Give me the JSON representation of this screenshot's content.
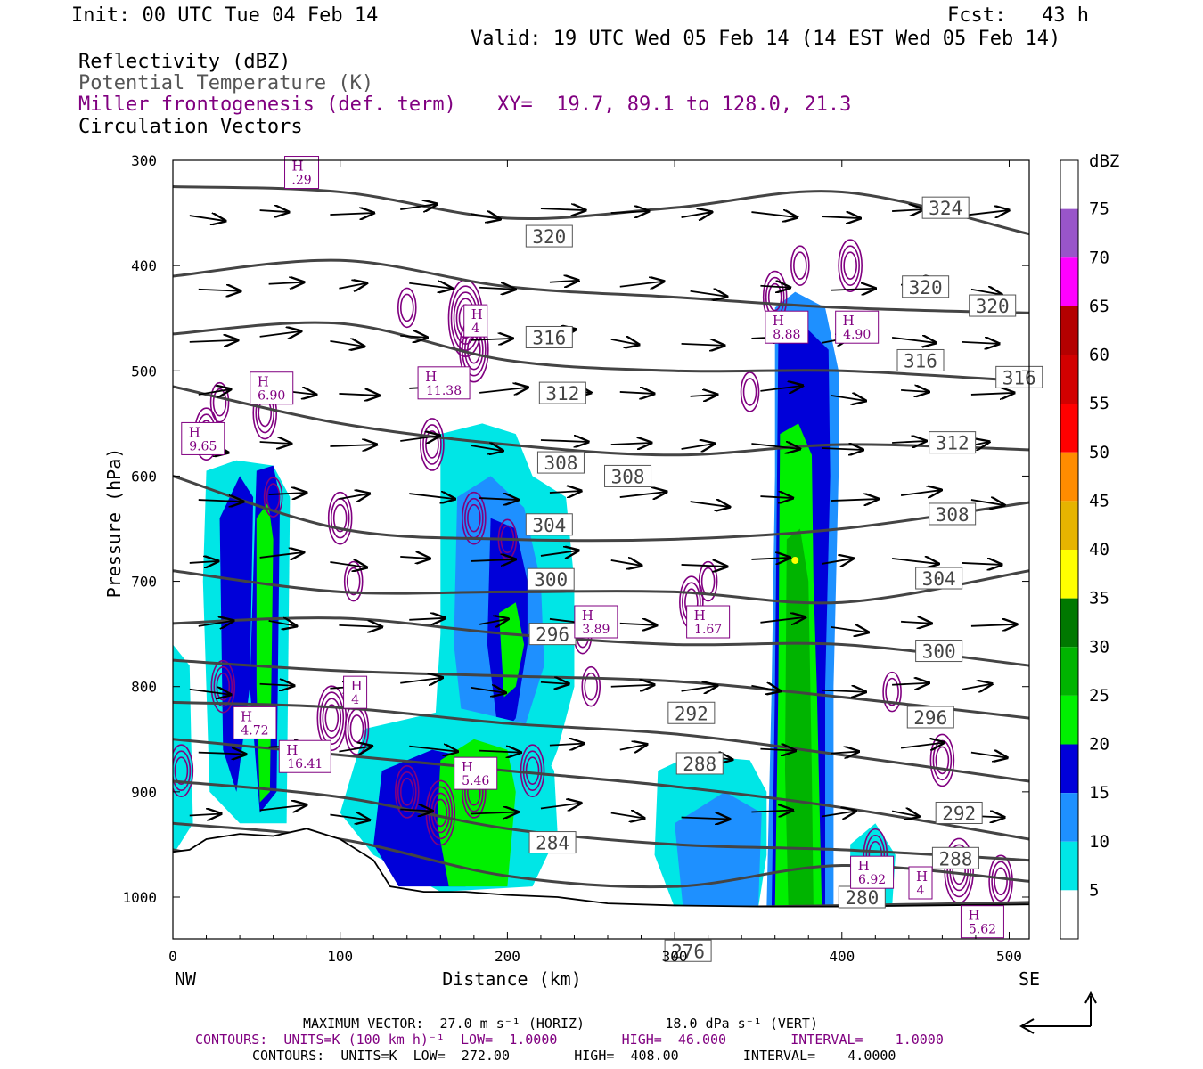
{
  "header": {
    "init": "Init: 00 UTC Tue 04 Feb 14",
    "fcst": "Fcst:   43 h",
    "valid": "Valid: 19 UTC Wed 05 Feb 14 (14 EST Wed 05 Feb 14)",
    "field1": "Reflectivity (dBZ)",
    "field2": "Potential Temperature (K)",
    "field3": "Miller frontogenesis (def. term)",
    "xy": "XY=  19.7, 89.1 to 128.0, 21.3",
    "field4": "Circulation Vectors"
  },
  "footer": {
    "max_vector": "MAXIMUM VECTOR:  27.0 m s⁻¹ (HORIZ)          18.0 dPa s⁻¹ (VERT)",
    "contours_fronto": "CONTOURS:  UNITS=K (100 km h)⁻¹  LOW=  1.0000        HIGH=  46.000        INTERVAL=    1.0000",
    "contours_theta": "CONTOURS:  UNITS=K  LOW=  272.00        HIGH=  408.00        INTERVAL=    4.0000"
  },
  "colors": {
    "theta": "#444444",
    "fronto": "#800080",
    "vectors": "#000000"
  },
  "chart_data": {
    "type": "cross-section",
    "xlabel": "Distance (km)",
    "ylabel": "Pressure (hPa)",
    "xlim": [
      0,
      512
    ],
    "ylim": [
      1040,
      300
    ],
    "x_ticks": [
      0,
      100,
      200,
      300,
      400,
      500
    ],
    "y_ticks": [
      300,
      400,
      500,
      600,
      700,
      800,
      900,
      1000
    ],
    "x_end_labels": [
      "NW",
      "SE"
    ],
    "colorbar": {
      "title": "dBZ",
      "levels": [
        5,
        10,
        15,
        20,
        25,
        30,
        35,
        40,
        45,
        50,
        55,
        60,
        65,
        70,
        75
      ],
      "colors": [
        "#ffffff",
        "#00e6e6",
        "#1e90ff",
        "#0000d9",
        "#00f000",
        "#00b400",
        "#007800",
        "#ffff00",
        "#e6b400",
        "#ff8c00",
        "#ff0000",
        "#d20000",
        "#b40000",
        "#ff00ff",
        "#9955c9",
        "#ffffff"
      ]
    },
    "theta_contours": [
      {
        "label": "276",
        "points": [
          [
            0,
            955
          ],
          [
            100,
            985
          ],
          [
            200,
            1008
          ],
          [
            300,
            1010
          ],
          [
            400,
            1008
          ],
          [
            512,
            1005
          ]
        ]
      },
      {
        "label": "280",
        "points": [
          [
            0,
            930
          ],
          [
            100,
            945
          ],
          [
            200,
            980
          ],
          [
            300,
            990
          ],
          [
            400,
            970
          ],
          [
            512,
            985
          ]
        ]
      },
      {
        "label": "284",
        "points": [
          [
            0,
            890
          ],
          [
            100,
            905
          ],
          [
            200,
            935
          ],
          [
            300,
            950
          ],
          [
            400,
            955
          ],
          [
            512,
            965
          ]
        ]
      },
      {
        "label": "288",
        "points": [
          [
            0,
            850
          ],
          [
            100,
            865
          ],
          [
            200,
            880
          ],
          [
            300,
            895
          ],
          [
            400,
            915
          ],
          [
            512,
            945
          ]
        ]
      },
      {
        "label": "292",
        "points": [
          [
            0,
            815
          ],
          [
            100,
            820
          ],
          [
            200,
            835
          ],
          [
            300,
            845
          ],
          [
            400,
            865
          ],
          [
            512,
            890
          ]
        ]
      },
      {
        "label": "296",
        "points": [
          [
            0,
            775
          ],
          [
            100,
            785
          ],
          [
            200,
            790
          ],
          [
            300,
            795
          ],
          [
            400,
            810
          ],
          [
            512,
            830
          ]
        ]
      },
      {
        "label": "300",
        "points": [
          [
            0,
            740
          ],
          [
            100,
            735
          ],
          [
            200,
            750
          ],
          [
            300,
            760
          ],
          [
            400,
            760
          ],
          [
            512,
            780
          ]
        ]
      },
      {
        "label": "304",
        "points": [
          [
            0,
            690
          ],
          [
            100,
            710
          ],
          [
            200,
            710
          ],
          [
            300,
            710
          ],
          [
            400,
            720
          ],
          [
            512,
            690
          ]
        ]
      },
      {
        "label": "308",
        "points": [
          [
            0,
            600
          ],
          [
            100,
            650
          ],
          [
            200,
            660
          ],
          [
            300,
            660
          ],
          [
            400,
            650
          ],
          [
            512,
            625
          ]
        ]
      },
      {
        "label": "312",
        "points": [
          [
            0,
            515
          ],
          [
            100,
            550
          ],
          [
            200,
            570
          ],
          [
            300,
            580
          ],
          [
            400,
            570
          ],
          [
            512,
            575
          ]
        ]
      },
      {
        "label": "316",
        "points": [
          [
            0,
            465
          ],
          [
            100,
            455
          ],
          [
            200,
            490
          ],
          [
            300,
            500
          ],
          [
            400,
            500
          ],
          [
            512,
            510
          ]
        ]
      },
      {
        "label": "320",
        "points": [
          [
            0,
            410
          ],
          [
            100,
            395
          ],
          [
            200,
            420
          ],
          [
            300,
            430
          ],
          [
            400,
            440
          ],
          [
            512,
            445
          ]
        ]
      },
      {
        "label": "324",
        "points": [
          [
            0,
            325
          ],
          [
            100,
            330
          ],
          [
            200,
            355
          ],
          [
            300,
            345
          ],
          [
            400,
            330
          ],
          [
            512,
            370
          ]
        ]
      }
    ],
    "theta_labels": [
      {
        "text": "324",
        "x": 462,
        "p": 345
      },
      {
        "text": "320",
        "x": 225,
        "p": 372
      },
      {
        "text": "320",
        "x": 450,
        "p": 420
      },
      {
        "text": "320",
        "x": 490,
        "p": 438
      },
      {
        "text": "316",
        "x": 225,
        "p": 468
      },
      {
        "text": "316",
        "x": 447,
        "p": 490
      },
      {
        "text": "316",
        "x": 506,
        "p": 506
      },
      {
        "text": "312",
        "x": 233,
        "p": 521
      },
      {
        "text": "312",
        "x": 466,
        "p": 568
      },
      {
        "text": "308",
        "x": 232,
        "p": 587
      },
      {
        "text": "308",
        "x": 272,
        "p": 600
      },
      {
        "text": "308",
        "x": 466,
        "p": 636
      },
      {
        "text": "304",
        "x": 225,
        "p": 646
      },
      {
        "text": "304",
        "x": 458,
        "p": 697
      },
      {
        "text": "300",
        "x": 226,
        "p": 698
      },
      {
        "text": "300",
        "x": 458,
        "p": 766
      },
      {
        "text": "296",
        "x": 227,
        "p": 750
      },
      {
        "text": "296",
        "x": 453,
        "p": 829
      },
      {
        "text": "292",
        "x": 310,
        "p": 825
      },
      {
        "text": "292",
        "x": 470,
        "p": 920
      },
      {
        "text": "288",
        "x": 315,
        "p": 873
      },
      {
        "text": "288",
        "x": 468,
        "p": 963
      },
      {
        "text": "284",
        "x": 227,
        "p": 948
      },
      {
        "text": "280",
        "x": 412,
        "p": 1000
      },
      {
        "text": "276",
        "x": 308,
        "p": 1051
      }
    ],
    "fronto_highs": [
      {
        "value": ".29",
        "x": 77,
        "p": 325
      },
      {
        "value": "4",
        "x": 181,
        "p": 466
      },
      {
        "value": "8.88",
        "x": 367,
        "p": 472
      },
      {
        "value": "4.90",
        "x": 409,
        "p": 472
      },
      {
        "value": "6.90",
        "x": 59,
        "p": 530
      },
      {
        "value": "11.38",
        "x": 162,
        "p": 525
      },
      {
        "value": "9.65",
        "x": 18,
        "p": 578
      },
      {
        "value": "3.89",
        "x": 253,
        "p": 752
      },
      {
        "value": "1.67",
        "x": 320,
        "p": 752
      },
      {
        "value": "4",
        "x": 109,
        "p": 819
      },
      {
        "value": "4.72",
        "x": 49,
        "p": 848
      },
      {
        "value": "16.41",
        "x": 79,
        "p": 880
      },
      {
        "value": "5.46",
        "x": 181,
        "p": 896
      },
      {
        "value": "6.92",
        "x": 418,
        "p": 990
      },
      {
        "value": "4",
        "x": 447,
        "p": 1000
      },
      {
        "value": "5.62",
        "x": 484,
        "p": 1037
      }
    ]
  }
}
